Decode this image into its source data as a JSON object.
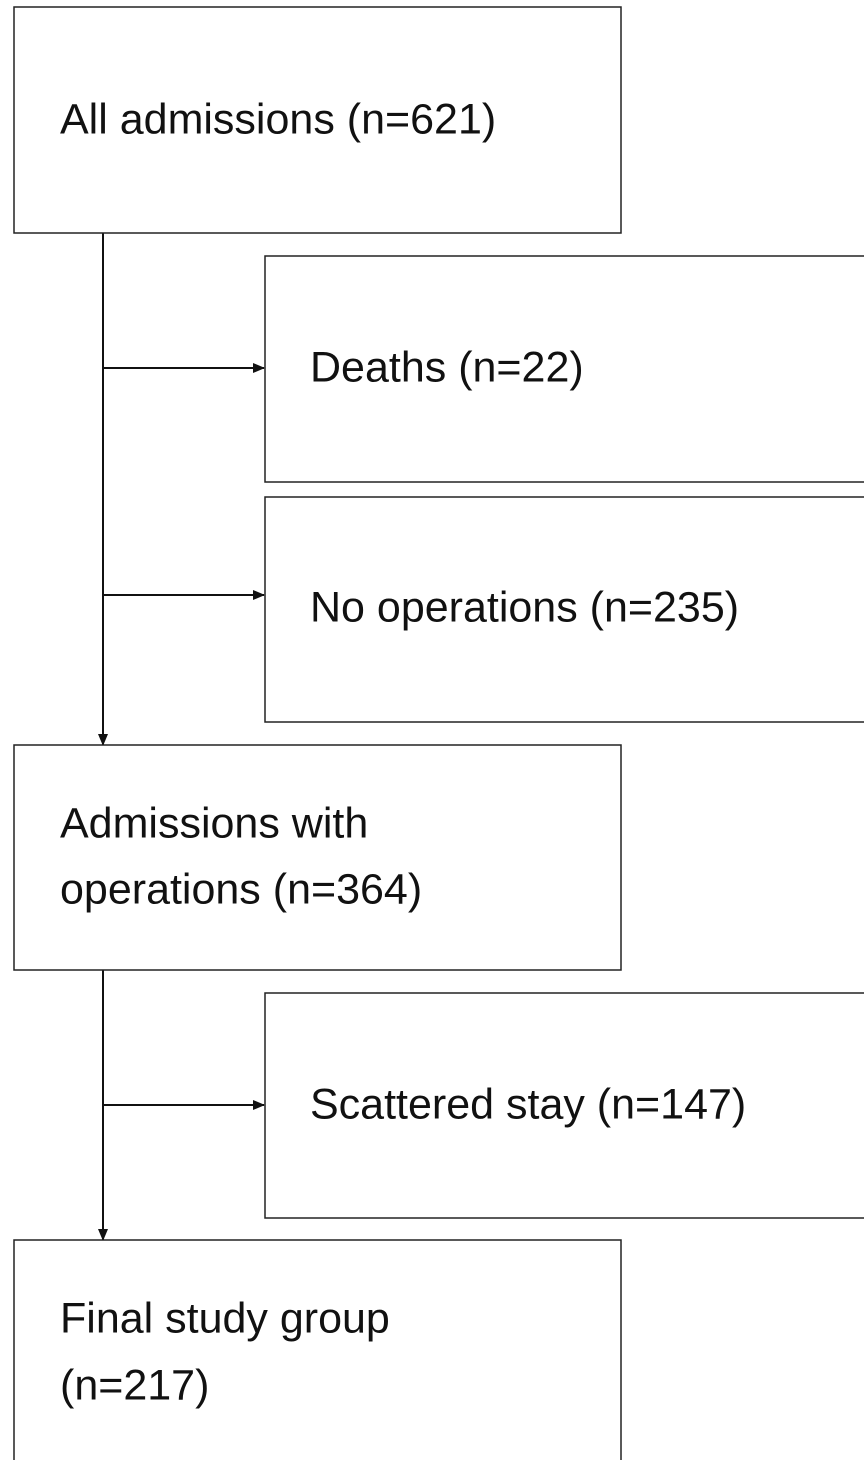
{
  "nodes": [
    {
      "lines": [
        "All admissions (n=621)"
      ]
    },
    {
      "lines": [
        "Deaths (n=22)"
      ]
    },
    {
      "lines": [
        "No operations (n=235)"
      ]
    },
    {
      "lines": [
        "Admissions with",
        "operations (n=364)"
      ]
    },
    {
      "lines": [
        "Scattered stay (n=147)"
      ]
    },
    {
      "lines": [
        "Final study group",
        "(n=217)"
      ]
    }
  ]
}
